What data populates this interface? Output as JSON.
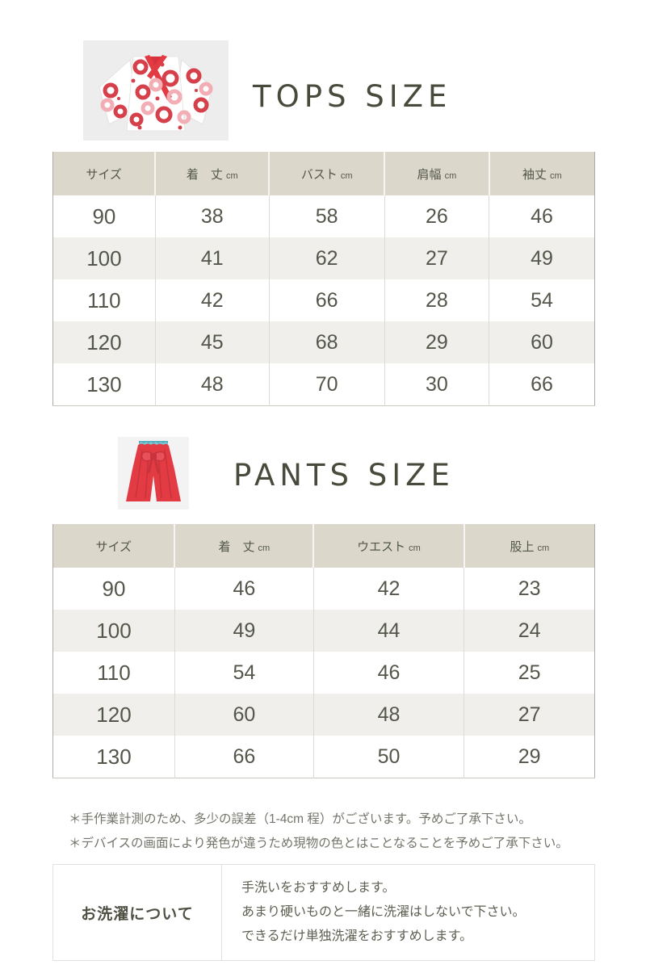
{
  "tops": {
    "title": "TOPS SIZE",
    "image": "kimono-floral-top",
    "table": {
      "headers": [
        {
          "label": "サイズ",
          "unit": ""
        },
        {
          "label": "着　丈",
          "unit": "cm"
        },
        {
          "label": "バスト",
          "unit": "cm"
        },
        {
          "label": "肩幅",
          "unit": "cm"
        },
        {
          "label": "袖丈",
          "unit": "cm"
        }
      ],
      "rows": [
        [
          "90",
          "38",
          "58",
          "26",
          "46"
        ],
        [
          "100",
          "41",
          "62",
          "27",
          "49"
        ],
        [
          "110",
          "42",
          "66",
          "28",
          "54"
        ],
        [
          "120",
          "45",
          "68",
          "29",
          "60"
        ],
        [
          "130",
          "48",
          "70",
          "30",
          "66"
        ]
      ]
    }
  },
  "pants": {
    "title": "PANTS SIZE",
    "image": "red-wide-pants",
    "table": {
      "headers": [
        {
          "label": "サイズ",
          "unit": ""
        },
        {
          "label": "着　丈",
          "unit": "cm"
        },
        {
          "label": "ウエスト",
          "unit": "cm"
        },
        {
          "label": "股上",
          "unit": "cm"
        }
      ],
      "rows": [
        [
          "90",
          "46",
          "42",
          "23"
        ],
        [
          "100",
          "49",
          "44",
          "24"
        ],
        [
          "110",
          "54",
          "46",
          "25"
        ],
        [
          "120",
          "60",
          "48",
          "27"
        ],
        [
          "130",
          "66",
          "50",
          "29"
        ]
      ]
    }
  },
  "notes": [
    "＊手作業計測のため、多少の誤差（1-4cm 程）がございます。予めご了承下さい。",
    "＊デバイスの画面により発色が違うため現物の色とはことなることを予めご了承下さい。"
  ],
  "laundry": {
    "label": "お洗濯について",
    "lines": [
      "手洗いをおすすめします。",
      "あまり硬いものと一緒に洗濯はしないで下さい。",
      "できるだけ単独洗濯をおすすめします。"
    ]
  },
  "colors": {
    "header_bg": "#dbd7cb",
    "alt_row_bg": "#f0efeb",
    "text": "#53564a",
    "accent_red": "#e23b44",
    "accent_pink": "#f3aeb5",
    "waistband_teal": "#7cc5d2"
  }
}
